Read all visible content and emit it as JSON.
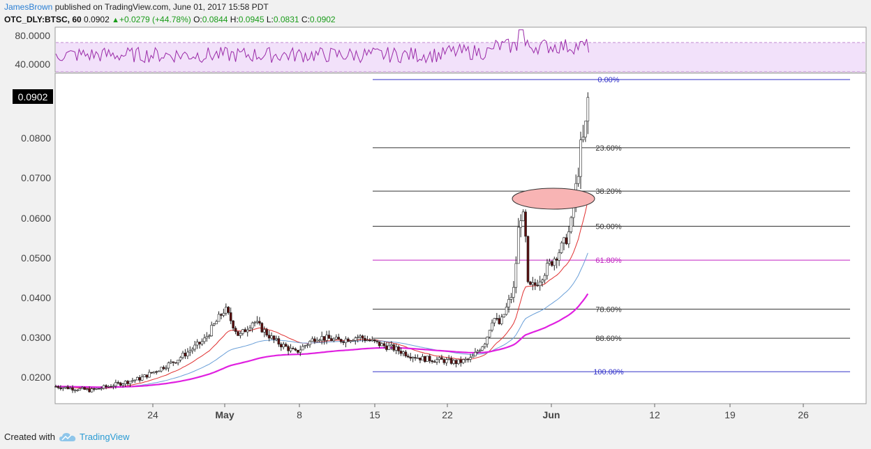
{
  "header": {
    "user": "JamesBrown",
    "published": "published on TradingView.com, June 01, 2017 15:58 PDT",
    "symbol": "OTC_DLY:BTSC, 60",
    "last": "0.0902",
    "change": "+0.0279 (+44.78%)",
    "o_label": "O:",
    "o_value": "0.0844",
    "h_label": "H:",
    "h_value": "0.0945",
    "l_label": "L:",
    "l_value": "0.0831",
    "c_label": "C:",
    "c_value": "0.0902"
  },
  "footer": {
    "created_with": "Created with",
    "brand": "TradingView"
  },
  "colors": {
    "up": "#1a9c1a",
    "down_candle": "#5a0e0e",
    "rsi": "#9a2aa8",
    "rsi_band": "#f2e1fa",
    "ma_red": "#e03030",
    "ma_blue": "#6a9fd8",
    "ma_magenta": "#e020e0",
    "fib_blue": "#3030c8",
    "fib_magenta": "#c020c0",
    "fib_gray": "#333333",
    "ellipse": "#f8b4b4"
  },
  "chart_data": {
    "type": "candlestick",
    "price_axis": {
      "ticks": [
        "0.0800",
        "0.0700",
        "0.0600",
        "0.0500",
        "0.0400",
        "0.0300",
        "0.0200"
      ],
      "current_label": "0.0902"
    },
    "time_axis": {
      "ticks": [
        "24",
        "May",
        "8",
        "15",
        "22",
        "Jun",
        "12",
        "19",
        "26"
      ]
    },
    "rsi_panel": {
      "ticks": [
        "80.0000",
        "40.0000"
      ],
      "band": [
        30,
        70
      ]
    },
    "fib_levels": [
      {
        "label": "0.00%",
        "price": 0.0945
      },
      {
        "label": "23.60%",
        "price": 0.0774
      },
      {
        "label": "38.20%",
        "price": 0.0665
      },
      {
        "label": "50.00%",
        "price": 0.0577
      },
      {
        "label": "61.80%",
        "price": 0.0492
      },
      {
        "label": "78.60%",
        "price": 0.0369
      },
      {
        "label": "88.60%",
        "price": 0.0296
      },
      {
        "label": "100.00%",
        "price": 0.0212
      }
    ],
    "price_path": [
      [
        0,
        0.0175
      ],
      [
        5,
        0.0165
      ],
      [
        12,
        0.0195
      ],
      [
        17,
        0.024
      ],
      [
        21,
        0.029
      ],
      [
        24,
        0.037
      ],
      [
        26,
        0.03
      ],
      [
        28,
        0.034
      ],
      [
        31,
        0.029
      ],
      [
        34,
        0.026
      ],
      [
        37,
        0.03
      ],
      [
        40,
        0.029
      ],
      [
        43,
        0.03
      ],
      [
        46,
        0.028
      ],
      [
        48,
        0.027
      ],
      [
        50,
        0.0255
      ],
      [
        52,
        0.0245
      ],
      [
        55,
        0.024
      ],
      [
        57,
        0.0235
      ],
      [
        59,
        0.0245
      ],
      [
        61,
        0.029
      ],
      [
        62,
        0.035
      ],
      [
        63,
        0.033
      ],
      [
        65,
        0.042
      ],
      [
        65.8,
        0.061
      ],
      [
        66.5,
        0.059
      ],
      [
        67,
        0.042
      ],
      [
        68,
        0.043
      ],
      [
        70,
        0.048
      ],
      [
        72,
        0.053
      ],
      [
        73,
        0.057
      ],
      [
        73.5,
        0.064
      ],
      [
        74,
        0.07
      ],
      [
        74.5,
        0.078
      ],
      [
        75,
        0.08
      ],
      [
        75.5,
        0.09
      ]
    ]
  }
}
